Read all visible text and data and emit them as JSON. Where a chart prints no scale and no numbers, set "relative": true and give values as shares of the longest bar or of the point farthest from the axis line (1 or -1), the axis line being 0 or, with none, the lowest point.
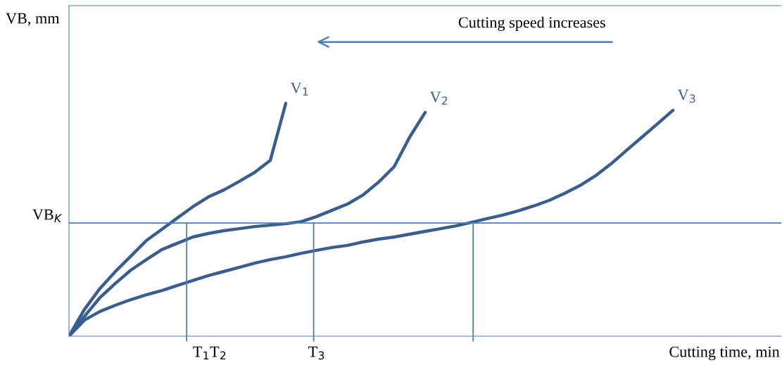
{
  "chart_data": {
    "type": "line",
    "relative": true,
    "xlabel": "Cutting time, min",
    "marker": "none",
    "line_style": "solid",
    "annotations": [
      "VB, mm",
      "Cutting speed increases",
      "T$_{1}$T$_{2}$",
      "T$_{3}$"
    ],
    "categories": [
      null,
      null,
      null,
      null,
      null,
      null,
      null,
      null,
      null,
      null,
      null,
      null,
      null,
      null,
      null,
      null,
      null,
      null,
      null,
      null,
      null,
      null,
      null,
      null,
      null,
      null,
      null,
      null,
      null,
      null,
      null,
      null,
      null,
      null,
      null,
      null,
      null,
      null,
      null,
      null,
      null,
      null,
      null,
      null,
      null,
      null
    ],
    "series": [
      {
        "name": "V$_{1}$",
        "color": "#3a5d8f",
        "values": [
          0,
          0.115,
          0.205,
          0.278,
          0.344,
          0.411,
          0.459,
          0.508,
          0.556,
          0.598,
          0.628,
          0.665,
          0.704,
          0.755,
          1,
          null,
          null,
          null,
          null,
          null,
          null,
          null,
          null,
          null,
          null,
          null,
          null,
          null,
          null,
          null,
          null,
          null,
          null,
          null,
          null,
          null,
          null,
          null,
          null,
          null,
          null,
          null,
          null,
          null,
          null,
          null
        ]
      },
      {
        "name": "V$_{2}$",
        "color": "#3a5d8f",
        "values": [
          0,
          0.085,
          0.166,
          0.227,
          0.284,
          0.329,
          0.372,
          0.399,
          0.426,
          0.441,
          0.453,
          0.462,
          0.471,
          0.477,
          0.483,
          0.492,
          0.514,
          0.541,
          0.568,
          0.607,
          0.662,
          0.728,
          0.855,
          0.961,
          null,
          null,
          null,
          null,
          null,
          null,
          null,
          null,
          null,
          null,
          null,
          null,
          null,
          null,
          null,
          null,
          null,
          null,
          null,
          null,
          null,
          null
        ]
      },
      {
        "name": "V$_{3}$",
        "color": "#3a5d8f",
        "values": [
          0,
          0.069,
          0.106,
          0.133,
          0.157,
          0.178,
          0.196,
          0.218,
          0.239,
          0.26,
          0.278,
          0.296,
          0.314,
          0.329,
          0.341,
          0.356,
          0.369,
          0.381,
          0.39,
          0.405,
          0.417,
          0.426,
          0.438,
          0.45,
          0.462,
          0.474,
          0.489,
          0.505,
          0.52,
          0.538,
          0.559,
          0.583,
          0.613,
          0.647,
          0.689,
          0.74,
          0.798,
          0.855,
          0.912,
          0.97,
          null,
          null,
          null,
          null,
          null,
          null
        ]
      }
    ],
    "ref_lines": [
      {
        "axis": "y",
        "value": 0.486,
        "label": "VB$_{K}$",
        "color": "#4a7ebb"
      }
    ]
  }
}
